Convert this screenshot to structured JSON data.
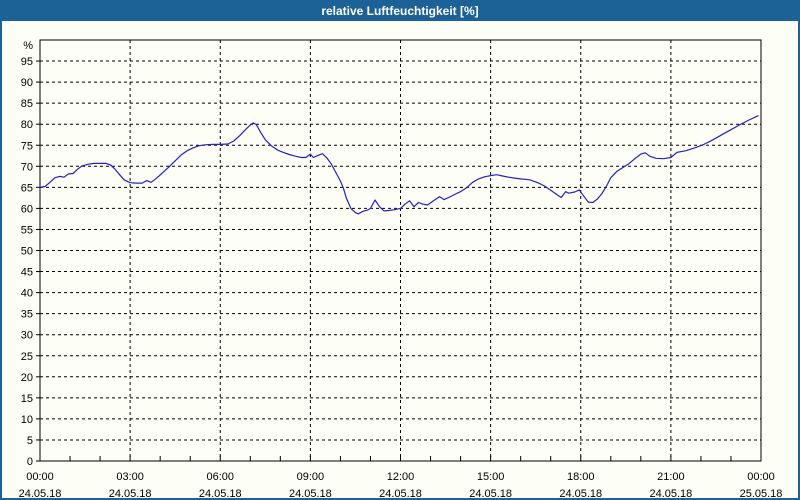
{
  "window": {
    "title": "relative Luftfeuchtigkeit [%]"
  },
  "colors": {
    "titlebar": "#1d6296",
    "window_border": "#1d6296",
    "background": "#fdfef6",
    "plot_border": "#000000",
    "grid": "#000000",
    "axis_text": "#000000",
    "title_text": "#ffffff",
    "line": "#2222c2"
  },
  "chart_data": {
    "type": "line",
    "title": "relative Luftfeuchtigkeit [%]",
    "ylabel": "%",
    "xlabel": "",
    "ylim": [
      0,
      100
    ],
    "xlim": [
      0,
      24
    ],
    "grid": "dashed-both",
    "legend": "none",
    "y_ticks": [
      0,
      5,
      10,
      15,
      20,
      25,
      30,
      35,
      40,
      45,
      50,
      55,
      60,
      65,
      70,
      75,
      80,
      85,
      90,
      95
    ],
    "y_unit_label": "%",
    "x_minor_tick_step_hours": 1,
    "x_ticks": [
      {
        "hour": 0,
        "time": "00:00",
        "date": "24.05.18"
      },
      {
        "hour": 3,
        "time": "03:00",
        "date": "24.05.18"
      },
      {
        "hour": 6,
        "time": "06:00",
        "date": "24.05.18"
      },
      {
        "hour": 9,
        "time": "09:00",
        "date": "24.05.18"
      },
      {
        "hour": 12,
        "time": "12:00",
        "date": "24.05.18"
      },
      {
        "hour": 15,
        "time": "15:00",
        "date": "24.05.18"
      },
      {
        "hour": 18,
        "time": "18:00",
        "date": "24.05.18"
      },
      {
        "hour": 21,
        "time": "21:00",
        "date": "24.05.18"
      },
      {
        "hour": 24,
        "time": "00:00",
        "date": "25.05.18"
      }
    ],
    "series": [
      {
        "name": "relative Luftfeuchtigkeit",
        "unit": "%",
        "points": [
          [
            0.0,
            65.0
          ],
          [
            0.17,
            65.2
          ],
          [
            0.33,
            66.2
          ],
          [
            0.5,
            67.3
          ],
          [
            0.65,
            67.6
          ],
          [
            0.8,
            67.4
          ],
          [
            0.95,
            68.2
          ],
          [
            1.1,
            68.3
          ],
          [
            1.25,
            69.3
          ],
          [
            1.4,
            70.1
          ],
          [
            1.6,
            70.5
          ],
          [
            1.8,
            70.7
          ],
          [
            2.0,
            70.7
          ],
          [
            2.2,
            70.7
          ],
          [
            2.35,
            70.3
          ],
          [
            2.5,
            69.3
          ],
          [
            2.65,
            68.0
          ],
          [
            2.8,
            66.8
          ],
          [
            3.0,
            66.1
          ],
          [
            3.2,
            66.0
          ],
          [
            3.4,
            66.0
          ],
          [
            3.55,
            66.6
          ],
          [
            3.7,
            66.2
          ],
          [
            3.9,
            67.3
          ],
          [
            4.1,
            68.6
          ],
          [
            4.3,
            69.9
          ],
          [
            4.5,
            71.3
          ],
          [
            4.7,
            72.7
          ],
          [
            4.9,
            73.7
          ],
          [
            5.1,
            74.4
          ],
          [
            5.3,
            74.9
          ],
          [
            5.5,
            75.1
          ],
          [
            5.75,
            75.2
          ],
          [
            6.0,
            75.2
          ],
          [
            6.25,
            75.3
          ],
          [
            6.45,
            76.0
          ],
          [
            6.65,
            77.3
          ],
          [
            6.85,
            78.8
          ],
          [
            7.0,
            79.8
          ],
          [
            7.1,
            80.3
          ],
          [
            7.2,
            79.9
          ],
          [
            7.35,
            78.0
          ],
          [
            7.5,
            76.3
          ],
          [
            7.7,
            74.9
          ],
          [
            7.9,
            73.9
          ],
          [
            8.1,
            73.3
          ],
          [
            8.3,
            72.8
          ],
          [
            8.5,
            72.4
          ],
          [
            8.7,
            72.1
          ],
          [
            8.85,
            72.1
          ],
          [
            9.0,
            72.9
          ],
          [
            9.1,
            72.1
          ],
          [
            9.25,
            72.6
          ],
          [
            9.4,
            73.0
          ],
          [
            9.55,
            72.0
          ],
          [
            9.7,
            70.5
          ],
          [
            9.85,
            68.5
          ],
          [
            10.0,
            66.5
          ],
          [
            10.1,
            64.8
          ],
          [
            10.2,
            62.4
          ],
          [
            10.35,
            60.0
          ],
          [
            10.5,
            59.0
          ],
          [
            10.6,
            58.7
          ],
          [
            10.75,
            59.3
          ],
          [
            10.9,
            59.6
          ],
          [
            11.0,
            60.0
          ],
          [
            11.15,
            62.0
          ],
          [
            11.3,
            60.4
          ],
          [
            11.45,
            59.4
          ],
          [
            11.6,
            59.5
          ],
          [
            11.8,
            59.7
          ],
          [
            12.0,
            60.0
          ],
          [
            12.15,
            61.0
          ],
          [
            12.3,
            61.8
          ],
          [
            12.45,
            60.4
          ],
          [
            12.6,
            61.4
          ],
          [
            12.75,
            61.0
          ],
          [
            12.9,
            60.8
          ],
          [
            13.1,
            61.8
          ],
          [
            13.3,
            62.8
          ],
          [
            13.45,
            62.1
          ],
          [
            13.6,
            62.6
          ],
          [
            13.8,
            63.3
          ],
          [
            14.0,
            64.0
          ],
          [
            14.2,
            64.9
          ],
          [
            14.4,
            66.2
          ],
          [
            14.6,
            67.0
          ],
          [
            14.8,
            67.5
          ],
          [
            15.0,
            67.8
          ],
          [
            15.2,
            68.0
          ],
          [
            15.4,
            67.7
          ],
          [
            15.6,
            67.4
          ],
          [
            15.8,
            67.2
          ],
          [
            16.0,
            67.0
          ],
          [
            16.3,
            66.8
          ],
          [
            16.6,
            66.0
          ],
          [
            16.8,
            65.3
          ],
          [
            17.0,
            64.3
          ],
          [
            17.2,
            63.3
          ],
          [
            17.35,
            62.6
          ],
          [
            17.5,
            64.0
          ],
          [
            17.6,
            63.6
          ],
          [
            17.8,
            63.9
          ],
          [
            17.95,
            64.4
          ],
          [
            18.1,
            62.9
          ],
          [
            18.25,
            61.5
          ],
          [
            18.4,
            61.4
          ],
          [
            18.55,
            62.2
          ],
          [
            18.7,
            63.5
          ],
          [
            18.85,
            65.2
          ],
          [
            19.0,
            67.3
          ],
          [
            19.2,
            68.8
          ],
          [
            19.4,
            69.7
          ],
          [
            19.6,
            70.6
          ],
          [
            19.8,
            71.8
          ],
          [
            20.0,
            72.9
          ],
          [
            20.15,
            73.2
          ],
          [
            20.3,
            72.4
          ],
          [
            20.5,
            71.9
          ],
          [
            20.75,
            71.8
          ],
          [
            21.0,
            72.1
          ],
          [
            21.2,
            73.3
          ],
          [
            21.5,
            73.7
          ],
          [
            21.8,
            74.4
          ],
          [
            22.1,
            75.2
          ],
          [
            22.4,
            76.3
          ],
          [
            22.7,
            77.5
          ],
          [
            23.0,
            78.7
          ],
          [
            23.3,
            79.9
          ],
          [
            23.6,
            81.0
          ],
          [
            23.9,
            82.0
          ]
        ]
      }
    ]
  }
}
